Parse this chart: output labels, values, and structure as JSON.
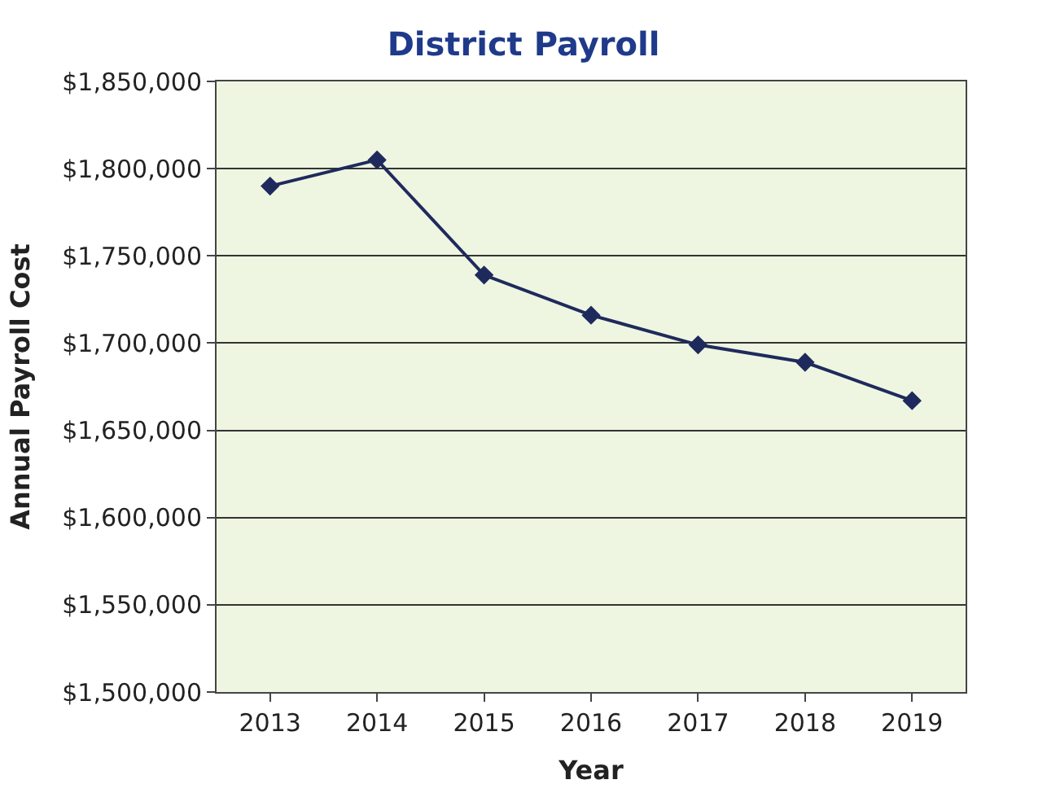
{
  "chart_data": {
    "type": "line",
    "title": "District Payroll",
    "xlabel": "Year",
    "ylabel": "Annual Payroll Cost",
    "categories": [
      "2013",
      "2014",
      "2015",
      "2016",
      "2017",
      "2018",
      "2019"
    ],
    "series": [
      {
        "color": "#1f2a5c",
        "values": [
          1790000,
          1805000,
          1739000,
          1716000,
          1699000,
          1689000,
          1667000
        ]
      }
    ],
    "ylim": [
      1500000,
      1850000
    ],
    "yticks": [
      {
        "value": 1500000,
        "label": "$1,500,000"
      },
      {
        "value": 1550000,
        "label": "$1,550,000"
      },
      {
        "value": 1600000,
        "label": "$1,600,000"
      },
      {
        "value": 1650000,
        "label": "$1,650,000"
      },
      {
        "value": 1700000,
        "label": "$1,700,000"
      },
      {
        "value": 1750000,
        "label": "$1,750,000"
      },
      {
        "value": 1800000,
        "label": "$1,800,000"
      },
      {
        "value": 1850000,
        "label": "$1,850,000"
      }
    ],
    "grid": "y",
    "marker": "diamond",
    "line_style": "solid"
  }
}
